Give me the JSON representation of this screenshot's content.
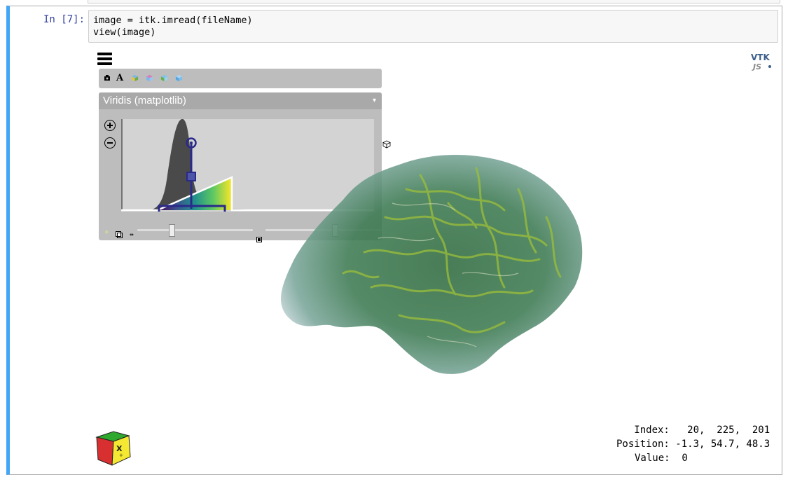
{
  "cell": {
    "prompt": "In [7]:",
    "code_line_1": "image = itk.imread(fileName)",
    "code_line_2": "view(image)"
  },
  "viewer": {
    "logo_text_top": "VTK",
    "logo_text_bottom": "JS",
    "toolbar_icons": [
      "camera-icon",
      "annotations-icon",
      "view-x-icon",
      "view-y-icon",
      "view-z-icon",
      "volume-icon"
    ],
    "colormap_preset": "Viridis (matplotlib)",
    "colormap_caret": "▾",
    "zoom_in_label": "+",
    "zoom_out_label": "−",
    "sample_distance_value": 0.3,
    "gradient_opacity_value": 0.6,
    "colormap_colors": [
      "#440154",
      "#3b528b",
      "#21918c",
      "#5ec962",
      "#fde725"
    ]
  },
  "info": {
    "index_line": "Index:   20,  225,  201",
    "position_line": "Position: -1.3, 54.7, 48.3",
    "value_line": "Value:  0"
  }
}
